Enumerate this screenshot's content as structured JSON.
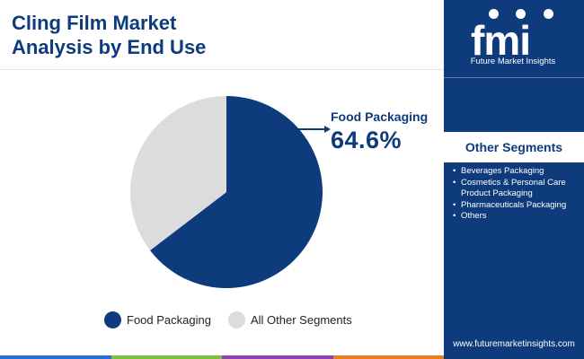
{
  "title": {
    "line1": "Cling Film Market",
    "line2": "Analysis by End Use"
  },
  "chart_data": {
    "type": "pie",
    "title": "Cling Film Market Analysis by End Use",
    "categories": [
      "Food Packaging",
      "All Other Segments"
    ],
    "values": [
      64.6,
      35.4
    ],
    "colors": [
      "#0d3b7c",
      "#dcdcdc"
    ],
    "annotation": {
      "label": "Food Packaging",
      "value": "64.6%"
    },
    "legend": {
      "placement": "bottom",
      "entries": [
        "Food Packaging",
        "All Other Segments"
      ]
    }
  },
  "sidebar": {
    "logo_text": "fmi",
    "logo_tagline": "Future Market Insights",
    "segments_title": "Other Segments",
    "segments": [
      "Beverages Packaging",
      "Cosmetics & Personal Care Product Packaging",
      "Pharmaceuticals Packaging",
      "Others"
    ],
    "website": "www.futuremarketinsights.com"
  },
  "colors": {
    "brand": "#0d3b7c",
    "other": "#dcdcdc",
    "bottom_bar": [
      "#2a6fd1",
      "#7bc043",
      "#8e44ad",
      "#e67e22"
    ]
  }
}
